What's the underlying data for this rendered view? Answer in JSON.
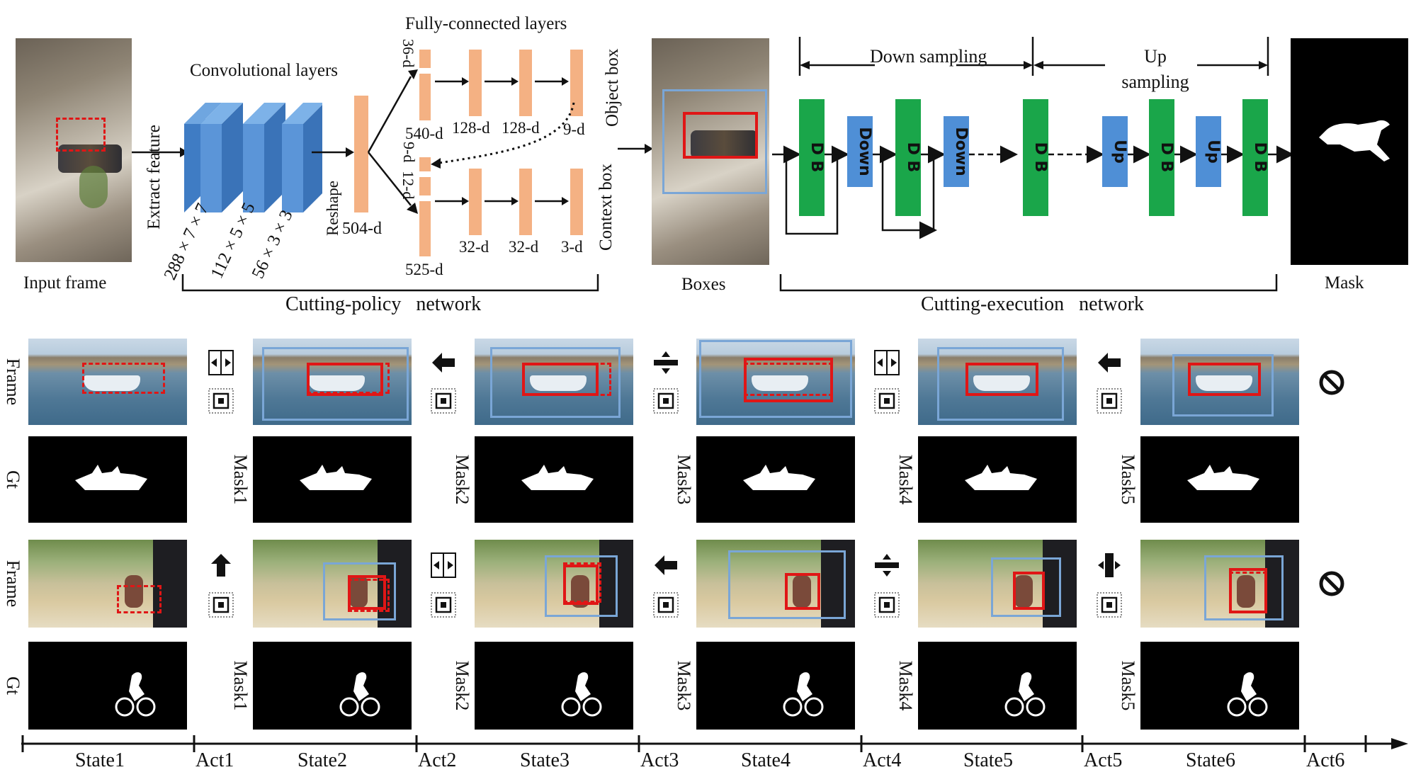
{
  "top": {
    "input_frame": "Input frame",
    "conv_layers": "Convolutional layers",
    "extract_feature": "Extract feature",
    "conv_dims": [
      "288 × 7 × 7",
      "112 × 5 × 5",
      "56 × 3 × 3"
    ],
    "reshape": "Reshape",
    "reshape_dim": "504-d",
    "fc_layers": "Fully-connected layers",
    "fc_obj_dims": [
      "36-d",
      "540-d",
      "128-d",
      "128-d",
      "9-d"
    ],
    "fc_ctx_dims": [
      "9-d",
      "12-d",
      "525-d",
      "32-d",
      "32-d",
      "3-d"
    ],
    "object_box": "Object box",
    "context_box": "Context box",
    "cutting_policy": "Cutting-policy   network",
    "boxes": "Boxes",
    "down_sampling": "Down sampling",
    "up_sampling": "Up sampling",
    "db": "D B",
    "down": "Down",
    "up": "Up",
    "cutting_execution": "Cutting-execution   network",
    "mask": "Mask"
  },
  "grid": {
    "frame_label": "Frame",
    "gt_label": "Gt",
    "mask_labels": [
      "Mask1",
      "Mask2",
      "Mask3",
      "Mask4",
      "Mask5"
    ]
  },
  "axis": {
    "states": [
      "State1",
      "State2",
      "State3",
      "State4",
      "State5",
      "State6"
    ],
    "acts": [
      "Act1",
      "Act2",
      "Act3",
      "Act4",
      "Act5",
      "Act6"
    ]
  },
  "colors": {
    "conv_blue": "#4f8fd6",
    "fc_orange": "#f4b183",
    "db_green": "#1aa64a",
    "down_up_blue": "#4f8fd6",
    "box_red": "#e01616",
    "box_blue": "#7aa6d6"
  }
}
